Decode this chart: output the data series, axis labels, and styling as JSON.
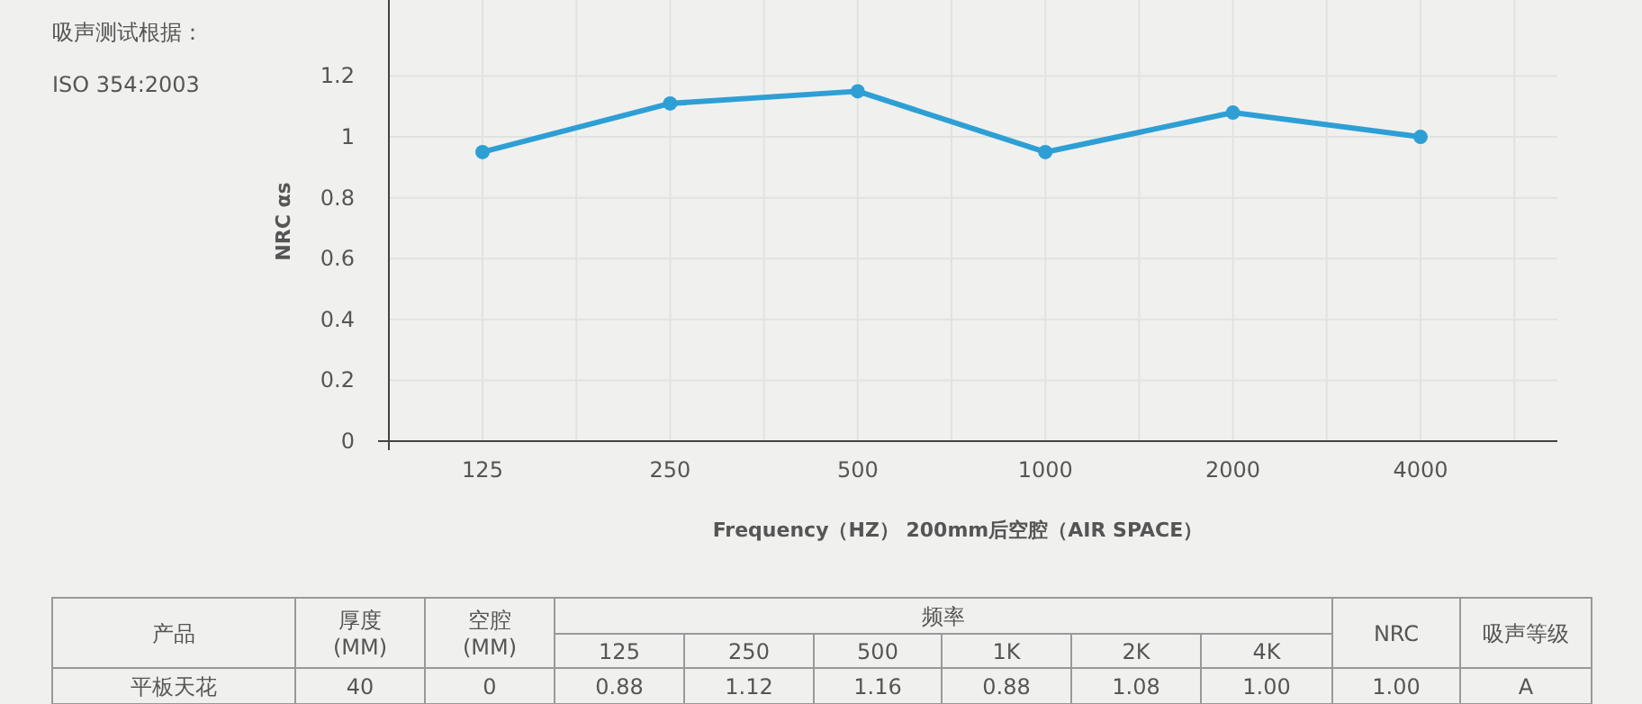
{
  "chart_data": {
    "type": "line",
    "categories": [
      "125",
      "250",
      "500",
      "1000",
      "2000",
      "4000"
    ],
    "series": [
      {
        "color": "#2e9fd5",
        "values": [
          0.95,
          1.11,
          1.15,
          0.95,
          1.08,
          1.0
        ]
      }
    ],
    "ylim": [
      0,
      1.45
    ],
    "yticks": [
      0,
      0.2,
      0.4,
      0.6,
      0.8,
      1,
      1.2
    ],
    "ylabel": "NRC αs",
    "xlabel": "Frequency（HZ） 200mm后空腔（AIR SPACE）",
    "grid": true,
    "marker": "circle",
    "annotations": [
      "吸声测试根据：",
      "ISO 354:2003",
      "产品",
      "厚度 (MM)",
      "空腔 (MM)",
      "频率",
      "125",
      "250",
      "500",
      "1K",
      "2K",
      "4K",
      "NRC",
      "吸声等级",
      "平板天花",
      "40",
      "0",
      "0.88",
      "1.12",
      "1.16",
      "0.88",
      "1.08",
      "1.00",
      "1.00",
      "A"
    ]
  }
}
